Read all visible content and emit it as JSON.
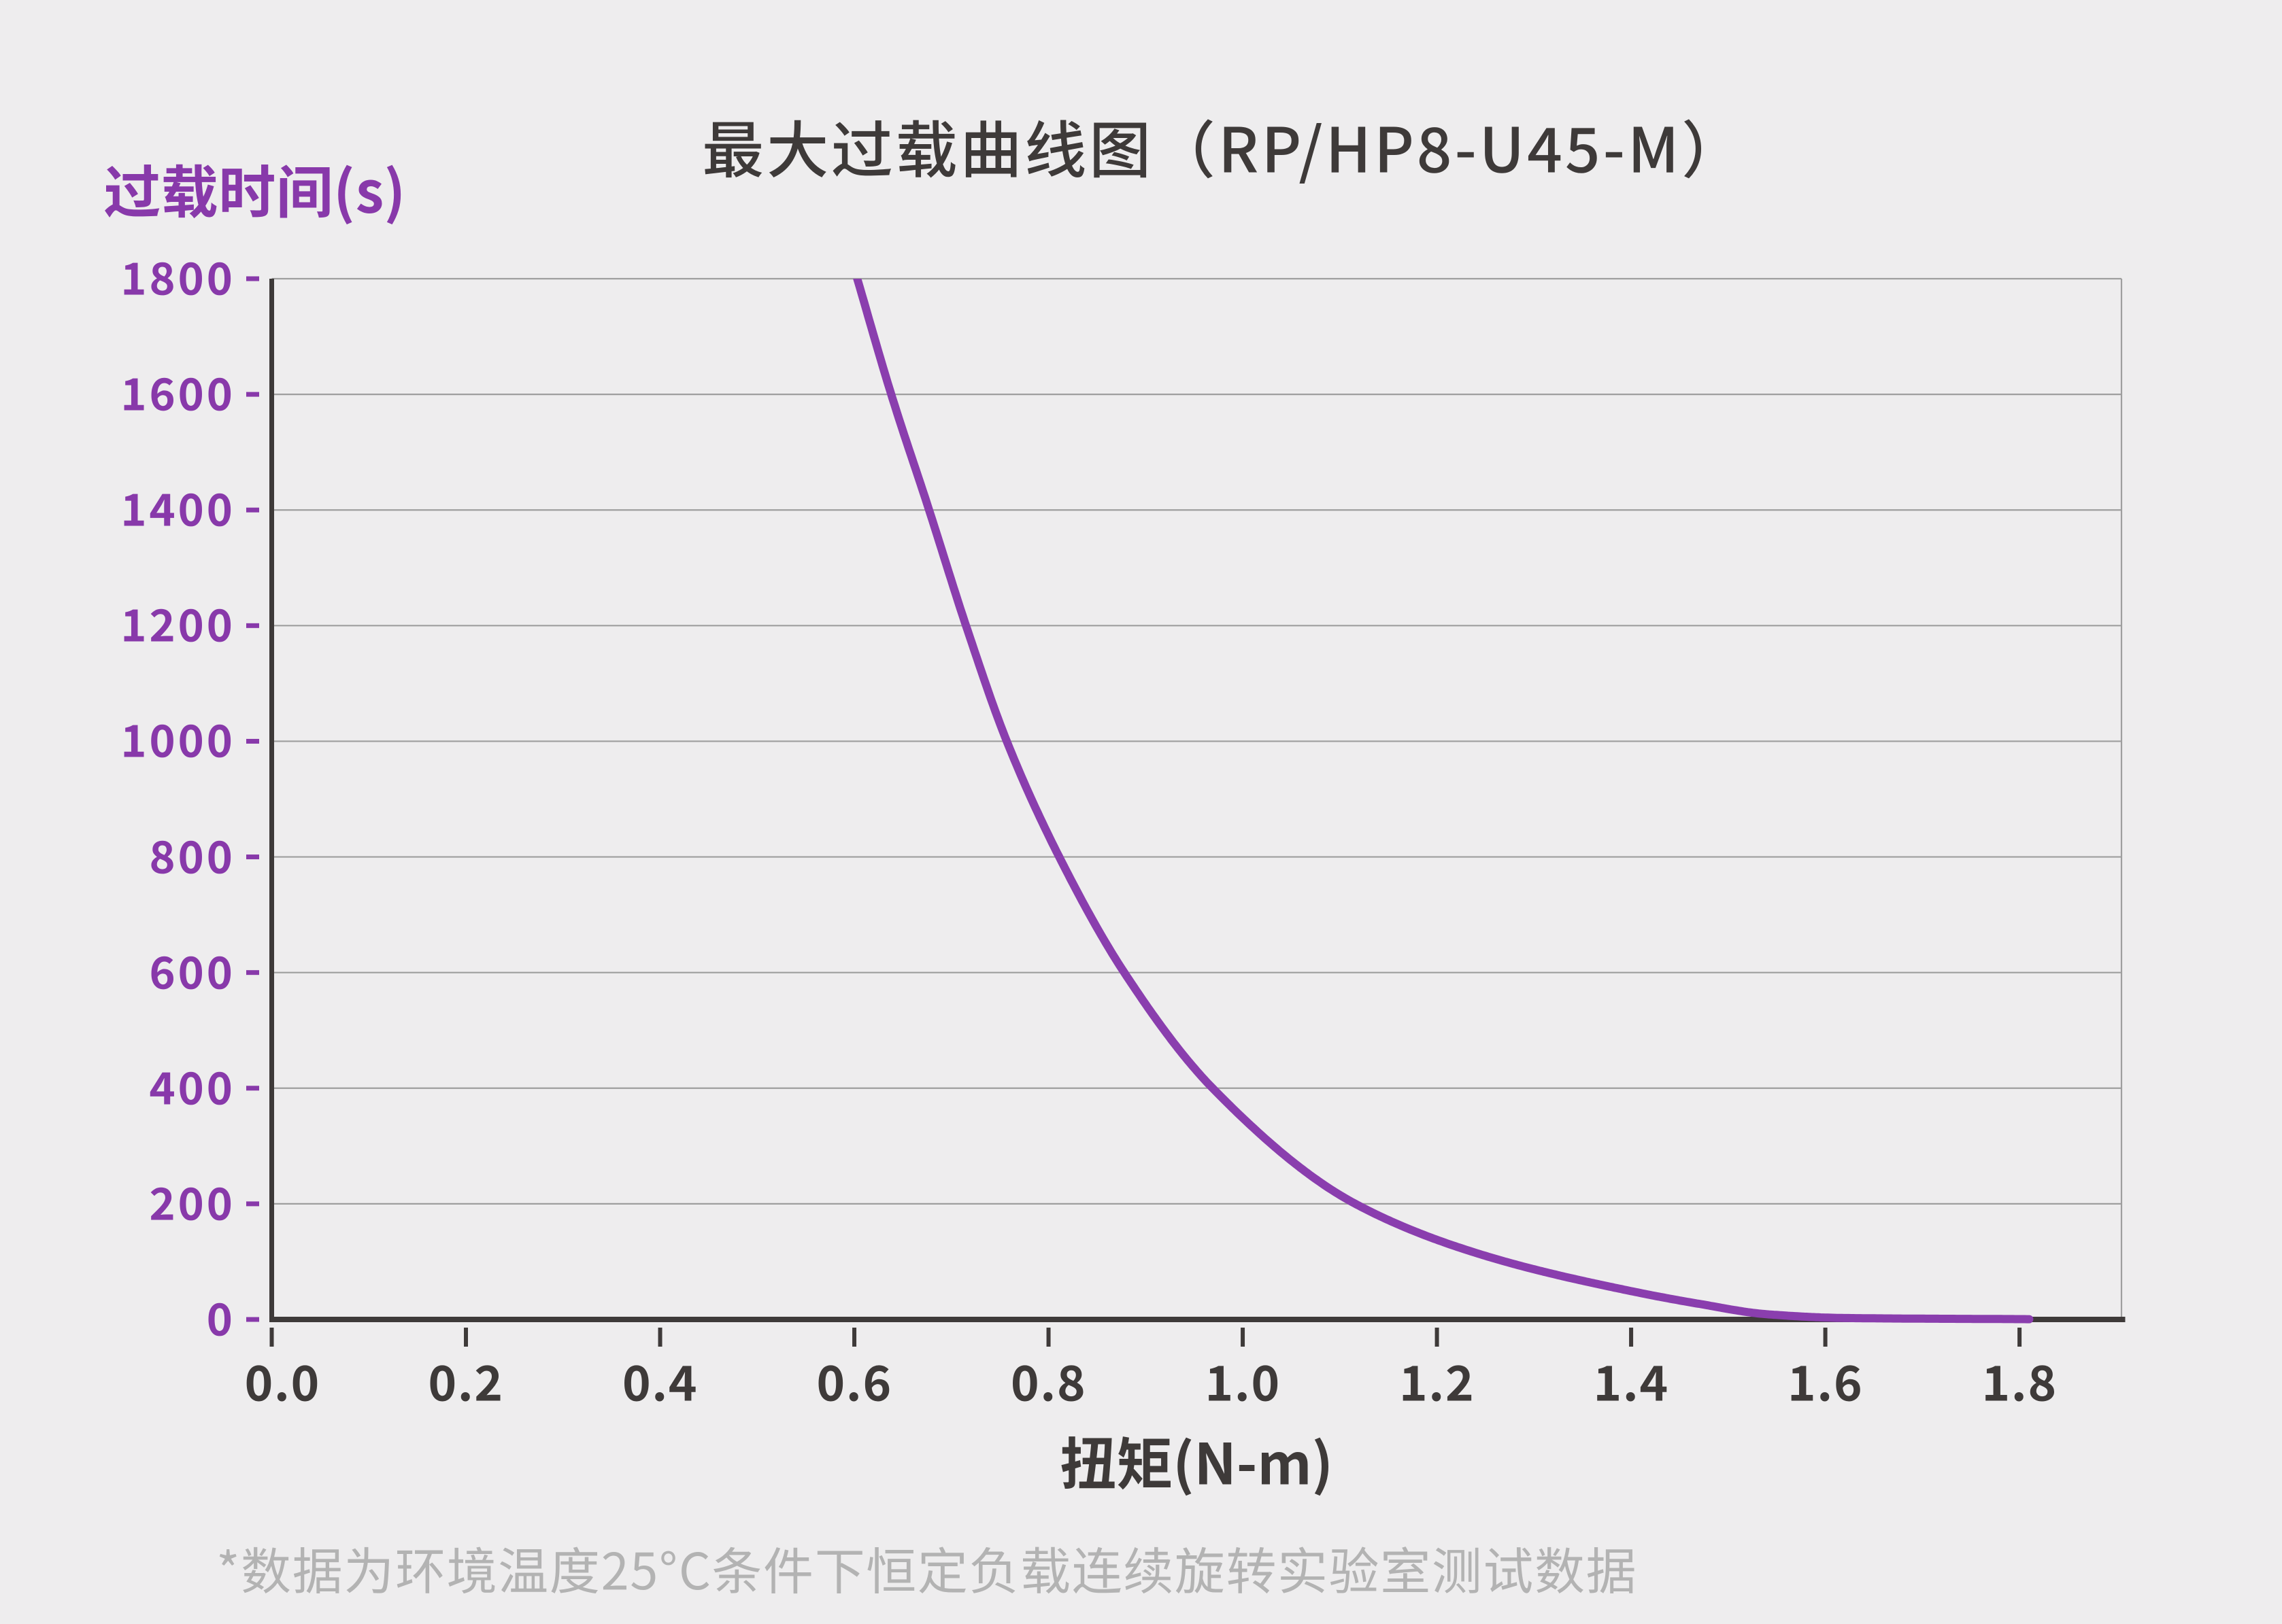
{
  "chart_data": {
    "type": "line",
    "title": "最大过载曲线图（RP/HP8-U45-M）",
    "xlabel": "扭矩(N-m)",
    "ylabel": "过载时间(s)",
    "x_axis": {
      "title": "扭矩(N-m)",
      "ticks": [
        "0.0",
        "0.2",
        "0.4",
        "0.6",
        "0.8",
        "1.0",
        "1.2",
        "1.4",
        "1.6",
        "1.8"
      ],
      "tick_values": [
        0.0,
        0.2,
        0.4,
        0.6,
        0.8,
        1.0,
        1.2,
        1.4,
        1.6,
        1.8
      ],
      "range": [
        0.0,
        1.905
      ]
    },
    "y_axis": {
      "title": "过载时间(s)",
      "ticks": [
        "0",
        "200",
        "400",
        "600",
        "800",
        "1000",
        "1200",
        "1400",
        "1600",
        "1800"
      ],
      "tick_values": [
        0,
        200,
        400,
        600,
        800,
        1000,
        1200,
        1400,
        1600,
        1800
      ],
      "range": [
        0,
        1800
      ]
    },
    "grid": "horizontal",
    "legend": "none",
    "series": [
      {
        "color": "#8a3eae",
        "points": [
          [
            0.603,
            1800
          ],
          [
            0.638,
            1600
          ],
          [
            0.677,
            1400
          ],
          [
            0.715,
            1200
          ],
          [
            0.757,
            1000
          ],
          [
            0.811,
            800
          ],
          [
            0.878,
            600
          ],
          [
            0.969,
            400
          ],
          [
            1.116,
            200
          ],
          [
            1.25,
            110
          ],
          [
            1.4,
            49
          ],
          [
            1.47,
            27
          ],
          [
            1.54,
            9
          ],
          [
            1.62,
            2.5
          ],
          [
            1.81,
            0.5
          ]
        ]
      }
    ],
    "note": "*数据为环境温度25°C条件下恒定负载连续旋转实验室测试数据"
  },
  "colors": {
    "background": "#eeedee",
    "title": "#3e3a39",
    "axis": "#3e3a39",
    "grid": "#9e9e9e",
    "y_label": "#8839aa",
    "x_label": "#3e3a39",
    "curve": "#8a3eae",
    "note": "#b3b3b3"
  }
}
